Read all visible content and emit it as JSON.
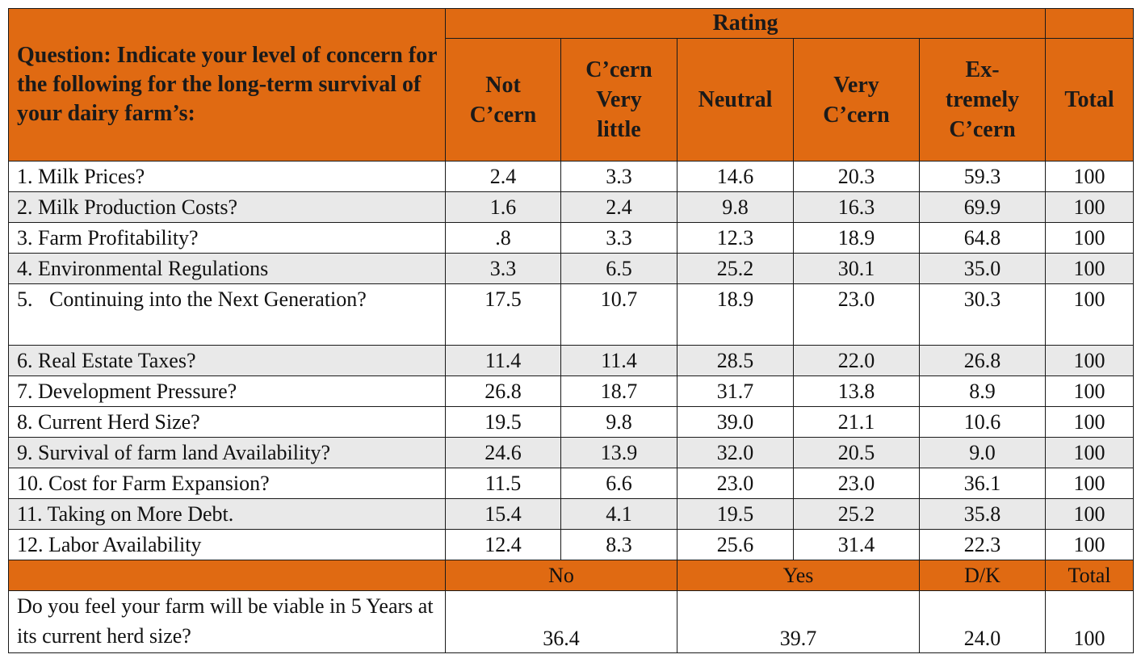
{
  "header": {
    "question": "Question:  Indicate your level of concern for the following for the long-term survival of your dairy farm’s:",
    "rating": "Rating",
    "columns": {
      "not_ccern": [
        "Not",
        "C’cern"
      ],
      "ccern_very_little": [
        "C’cern",
        "Very",
        "little"
      ],
      "neutral": [
        "Neutral"
      ],
      "very_ccern": [
        "Very",
        "C’cern"
      ],
      "extremely_ccern": [
        "Ex-",
        "tremely",
        "C’cern"
      ]
    },
    "total": "Total"
  },
  "rows": [
    {
      "q": "1.  Milk Prices?",
      "v": [
        "2.4",
        "3.3",
        "14.6",
        "20.3",
        "59.3",
        "100"
      ]
    },
    {
      "q": "2.  Milk Production Costs?",
      "v": [
        "1.6",
        "2.4",
        "9.8",
        "16.3",
        "69.9",
        "100"
      ]
    },
    {
      "q": "3.  Farm Profitability?",
      "v": [
        ".8",
        "3.3",
        "12.3",
        "18.9",
        "64.8",
        "100"
      ]
    },
    {
      "q": "4.  Environmental Regulations",
      "v": [
        "3.3",
        "6.5",
        "25.2",
        "30.1",
        "35.0",
        "100"
      ]
    },
    {
      "q_num": "5.",
      "q_text": "Continuing into the Next Generation?",
      "v": [
        "17.5",
        "10.7",
        "18.9",
        "23.0",
        "30.3",
        "100"
      ]
    },
    {
      "q": "6.  Real Estate Taxes?",
      "v": [
        "11.4",
        "11.4",
        "28.5",
        "22.0",
        "26.8",
        "100"
      ]
    },
    {
      "q": "7.  Development Pressure?",
      "v": [
        "26.8",
        "18.7",
        "31.7",
        "13.8",
        "8.9",
        "100"
      ]
    },
    {
      "q": "8.  Current Herd Size?",
      "v": [
        "19.5",
        "9.8",
        "39.0",
        "21.1",
        "10.6",
        "100"
      ]
    },
    {
      "q": "9.  Survival of farm land Availability?",
      "v": [
        "24.6",
        "13.9",
        "32.0",
        "20.5",
        "9.0",
        "100"
      ]
    },
    {
      "q": "10. Cost for Farm Expansion?",
      "v": [
        "11.5",
        "6.6",
        "23.0",
        "23.0",
        "36.1",
        "100"
      ]
    },
    {
      "q": "11. Taking on More Debt.",
      "v": [
        "15.4",
        "4.1",
        "19.5",
        "25.2",
        "35.8",
        "100"
      ]
    },
    {
      "q": "12. Labor Availability",
      "v": [
        "12.4",
        "8.3",
        "25.6",
        "31.4",
        "22.3",
        "100"
      ]
    }
  ],
  "subheader": {
    "no": "No",
    "yes": "Yes",
    "dk": "D/K",
    "total": "Total"
  },
  "viable": {
    "q": "Do you feel your farm will be viable in 5 Years at its current herd size?",
    "no": "36.4",
    "yes": "39.7",
    "dk": "24.0",
    "total": "100"
  },
  "colors": {
    "header_orange": "#e06a12",
    "shade_gray": "#e9e9e9"
  }
}
